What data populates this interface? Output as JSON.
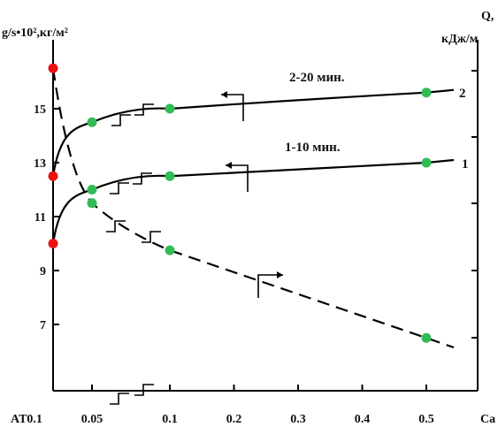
{
  "chart_data": {
    "type": "line",
    "y_left_label": "g/s•10²,кг/м²",
    "y_right_label_line1": "Q,",
    "y_right_label_line2": "кДж/м",
    "x_label": "Ca",
    "x_first_tick_label": "AT0.1",
    "x_ticks": [
      0.05,
      0.1,
      0.2,
      0.3,
      0.4,
      0.5
    ],
    "x_tick_labels": [
      "0.05",
      "0.1",
      "0.2",
      "0.3",
      "0.4",
      "0.5"
    ],
    "y_left_ticks": [
      7,
      9,
      11,
      13,
      15
    ],
    "y_left_tick_labels": [
      "7",
      "9",
      "11",
      "13",
      "15"
    ],
    "y_left_range": [
      4.5,
      16.5
    ],
    "series": [
      {
        "name": "2",
        "annotation": "2-20 мин.",
        "style": "solid",
        "axis": "left",
        "points": [
          {
            "x": 0,
            "y": 12.5
          },
          {
            "x": 0.05,
            "y": 14.5
          },
          {
            "x": 0.1,
            "y": 15.0
          },
          {
            "x": 0.5,
            "y": 15.6
          }
        ]
      },
      {
        "name": "1",
        "annotation": "1-10 мин.",
        "style": "solid",
        "axis": "left",
        "points": [
          {
            "x": 0,
            "y": 10.0
          },
          {
            "x": 0.05,
            "y": 12.0
          },
          {
            "x": 0.1,
            "y": 12.5
          },
          {
            "x": 0.5,
            "y": 13.0
          }
        ]
      },
      {
        "name": "",
        "annotation": "",
        "style": "dashed",
        "axis": "right",
        "points": [
          {
            "x": 0,
            "y": 16.5
          },
          {
            "x": 0.05,
            "y": 11.5
          },
          {
            "x": 0.1,
            "y": 9.75
          },
          {
            "x": 0.5,
            "y": 6.5
          }
        ]
      }
    ],
    "colors": {
      "start_point": "#ee1111",
      "data_point": "#33bb55",
      "line": "#000000",
      "first_tick_label": "#dd1111",
      "x_axis_label": "#22aa22"
    }
  }
}
